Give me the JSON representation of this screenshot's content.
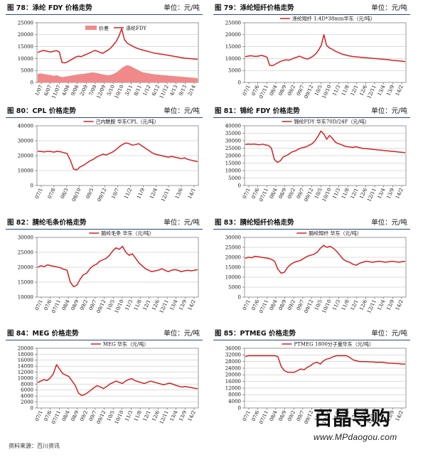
{
  "colors": {
    "line": "#d42020",
    "area": "#f08a8a",
    "rule": "#2c4a7a"
  },
  "panels": [
    {
      "title": "图 78：涤纶 FDY 价格走势",
      "unit": "单位：元/吨"
    },
    {
      "title": "图 79：涤纶短纤价格走势",
      "unit": "单位：元/吨"
    },
    {
      "title": "图 80：CPL 价格走势",
      "unit": "单位：元/吨"
    },
    {
      "title": "图 81：锦纶 FDY 价格走势",
      "unit": "单位：元/吨"
    },
    {
      "title": "图 82：腈纶毛条价格走势",
      "unit": "单位：元/吨"
    },
    {
      "title": "图 83：腈纶短纤价格走势",
      "unit": "单位：元/吨"
    },
    {
      "title": "图 84：MEG 价格走势",
      "unit": "单位：元/吨"
    },
    {
      "title": "图 85：PTMEG 价格走势",
      "unit": "单位：元/吨"
    }
  ],
  "source": "资料来源：百川资讯",
  "watermark": {
    "logo": "百晶导购",
    "url": "www.MPdaogou.com"
  },
  "chart_data": [
    {
      "type": "area",
      "ylim": [
        0,
        25000
      ],
      "yticks": [
        "0",
        "5000",
        "10000",
        "15000",
        "20000",
        "25000"
      ],
      "xticks": [
        "1/07",
        "6/07",
        "11/07",
        "4/08",
        "9/08",
        "2/09",
        "7/09",
        "12/09",
        "5/10",
        "10/10",
        "3/11",
        "8/11",
        "1/12",
        "6/12",
        "11/12",
        "4/13",
        "9/13",
        "2/14"
      ],
      "series": [
        {
          "name": "价差",
          "kind": "area",
          "values": [
            3500,
            3800,
            3600,
            3400,
            3200,
            3000,
            2800,
            3000,
            2600,
            2200,
            2400,
            2600,
            2800,
            3000,
            3200,
            3400,
            3500,
            3600,
            3800,
            4000,
            4200,
            4100,
            3900,
            3600,
            3400,
            3200,
            3000,
            3200,
            3600,
            4200,
            5000,
            6000,
            6800,
            7200,
            7000,
            6400,
            5800,
            5200,
            4600,
            4200,
            4000,
            3800,
            3600,
            3400,
            3300,
            3200,
            3100,
            3000,
            2900,
            2800,
            2700,
            2600,
            2500,
            2400,
            2300,
            2200,
            2100,
            2000,
            1900,
            1800
          ]
        },
        {
          "name": "涤纶FDY",
          "kind": "line",
          "values": [
            12500,
            13000,
            13400,
            13200,
            12900,
            12800,
            13100,
            13300,
            12700,
            8300,
            8200,
            8600,
            9300,
            9900,
            10600,
            11000,
            10800,
            11300,
            11800,
            12300,
            12800,
            13400,
            13100,
            12600,
            12200,
            12900,
            13600,
            14500,
            15800,
            17200,
            19500,
            22500,
            18000,
            16500,
            15800,
            15200,
            14600,
            14200,
            13800,
            13500,
            13200,
            12900,
            12600,
            12300,
            12100,
            11900,
            11800,
            11600,
            11400,
            11200,
            11000,
            10800,
            10600,
            10400,
            10200,
            10100,
            10000,
            9900,
            9800,
            9700
          ]
        }
      ]
    },
    {
      "type": "line",
      "ylim": [
        0,
        25000
      ],
      "yticks": [
        "0",
        "5000",
        "10000",
        "15000",
        "20000",
        "25000"
      ],
      "xticks": [
        "07/1",
        "07/6",
        "07/11",
        "08/4",
        "08/9",
        "09/2",
        "09/7",
        "09/12",
        "10/5",
        "10/10",
        "11/3",
        "11/8",
        "12/1",
        "12/6",
        "12/11",
        "13/4",
        "13/9",
        "14/2"
      ],
      "series": [
        {
          "name": "涤纶短纤 1.4D*38mm华东（元/吨）",
          "values": [
            10800,
            11000,
            11200,
            11000,
            10900,
            11100,
            11300,
            11000,
            10600,
            7200,
            7000,
            7600,
            8200,
            8800,
            9200,
            9500,
            9300,
            9700,
            10200,
            10600,
            11000,
            10500,
            10100,
            9800,
            10300,
            11000,
            12000,
            13500,
            15500,
            20000,
            15500,
            14500,
            14000,
            13200,
            12700,
            12200,
            11800,
            11500,
            11200,
            11000,
            10800,
            10700,
            10600,
            10500,
            10400,
            10300,
            10200,
            10100,
            10000,
            9900,
            9800,
            9700,
            9600,
            9500,
            9300,
            9200,
            9100,
            9000,
            8900,
            8700
          ]
        }
      ]
    },
    {
      "type": "line",
      "ylim": [
        0,
        40000
      ],
      "yticks": [
        "0",
        "10000",
        "20000",
        "30000",
        "40000"
      ],
      "xticks": [
        "07/1",
        "07/8",
        "08/3",
        "08/10",
        "09/5",
        "09/12",
        "10/7",
        "11/2",
        "11/9",
        "12/4",
        "12/11",
        "13/6",
        "14/1"
      ],
      "series": [
        {
          "name": "己内酰胺 华东CPL（元/吨）",
          "values": [
            23000,
            22800,
            22500,
            23000,
            22700,
            22400,
            22900,
            22600,
            22000,
            21500,
            17000,
            11000,
            10500,
            12500,
            13500,
            15000,
            16500,
            17500,
            19000,
            20000,
            21000,
            20500,
            21500,
            22500,
            24000,
            26000,
            27500,
            28500,
            28000,
            27000,
            27500,
            28000,
            26500,
            25000,
            23500,
            22000,
            21000,
            20500,
            20000,
            19500,
            19000,
            19500,
            19000,
            18500,
            18000,
            18500,
            17500,
            17000,
            16500,
            16000
          ]
        }
      ]
    },
    {
      "type": "line",
      "ylim": [
        0,
        40000
      ],
      "yticks": [
        "0",
        "5000",
        "10000",
        "15000",
        "20000",
        "25000",
        "30000",
        "35000",
        "40000"
      ],
      "xticks": [
        "07/1",
        "07/6",
        "07/11",
        "08/4",
        "08/9",
        "09/2",
        "09/7",
        "09/12",
        "10/5",
        "10/10",
        "11/3",
        "11/8",
        "12/1",
        "12/6",
        "12/11",
        "13/4",
        "13/9",
        "14/2"
      ],
      "series": [
        {
          "name": "锦纶FDY 华东70D/24F（元/吨）",
          "values": [
            27500,
            27800,
            27600,
            27800,
            27500,
            27300,
            27700,
            27200,
            26800,
            25000,
            17500,
            15500,
            16500,
            19000,
            20000,
            21000,
            22500,
            23000,
            24000,
            25000,
            25500,
            26000,
            27000,
            28000,
            30000,
            33000,
            36500,
            34500,
            31000,
            33500,
            31500,
            29000,
            28000,
            27500,
            26500,
            26000,
            25800,
            25500,
            26000,
            25500,
            25000,
            24800,
            24600,
            24400,
            24200,
            24000,
            23800,
            23600,
            23400,
            23200,
            23000,
            22800,
            22600,
            22400,
            22200,
            22000
          ]
        }
      ]
    },
    {
      "type": "line",
      "ylim": [
        10000,
        30000
      ],
      "yticks": [
        "10000",
        "15000",
        "20000",
        "25000",
        "30000"
      ],
      "xticks": [
        "07/1",
        "07/6",
        "07/11",
        "08/4",
        "08/9",
        "09/2",
        "09/7",
        "09/12",
        "10/5",
        "10/10",
        "11/3",
        "11/8",
        "12/1",
        "12/6",
        "12/11",
        "13/4",
        "13/9",
        "14/2"
      ],
      "series": [
        {
          "name": "腈纶毛条 华东（元/吨）",
          "values": [
            20000,
            20500,
            20200,
            20800,
            20500,
            20300,
            20100,
            19800,
            19300,
            19000,
            15000,
            13500,
            14000,
            16000,
            17500,
            18000,
            19500,
            20500,
            21000,
            22000,
            22500,
            23000,
            24000,
            25500,
            26500,
            26000,
            27000,
            25000,
            24000,
            24500,
            23000,
            21500,
            20500,
            19500,
            19000,
            18500,
            18800,
            19000,
            19500,
            19000,
            18500,
            19000,
            19200,
            19000,
            18500,
            18800,
            19000,
            18800,
            19000,
            19200
          ]
        }
      ]
    },
    {
      "type": "line",
      "ylim": [
        0,
        30000
      ],
      "yticks": [
        "0",
        "5000",
        "10000",
        "15000",
        "20000",
        "25000",
        "30000"
      ],
      "xticks": [
        "07/1",
        "07/6",
        "07/11",
        "08/4",
        "08/9",
        "09/2",
        "09/7",
        "09/12",
        "10/5",
        "10/10",
        "11/3",
        "11/8",
        "12/1",
        "12/6",
        "12/11",
        "13/4",
        "13/9",
        "14/2"
      ],
      "series": [
        {
          "name": "腈纶短纤 华东（元/吨）",
          "values": [
            19500,
            20000,
            19800,
            20500,
            20300,
            20000,
            19700,
            19500,
            19000,
            18000,
            14000,
            12000,
            12500,
            15000,
            16500,
            17500,
            18000,
            18500,
            19500,
            20500,
            21000,
            21500,
            22500,
            24500,
            26000,
            25000,
            25500,
            24500,
            23000,
            21000,
            19000,
            18000,
            17500,
            16500,
            16000,
            17000,
            17500,
            18000,
            17800,
            17500,
            17800,
            18000,
            17800,
            17500,
            17800,
            18000,
            17800,
            17500,
            17800,
            18000
          ]
        }
      ]
    },
    {
      "type": "line",
      "ylim": [
        0,
        20000
      ],
      "yticks": [
        "0",
        "2000",
        "4000",
        "6000",
        "8000",
        "10000",
        "12000",
        "14000",
        "16000",
        "18000",
        "20000"
      ],
      "xticks": [
        "07/1",
        "07/6",
        "07/11",
        "08/4",
        "08/9",
        "09/2",
        "09/7",
        "09/12",
        "10/5",
        "10/10",
        "11/3",
        "11/8",
        "12/1",
        "12/6",
        "12/11",
        "13/4",
        "13/9",
        "14/2"
      ],
      "series": [
        {
          "name": "MEG 华东（元/吨）",
          "values": [
            8500,
            9000,
            9500,
            9200,
            10000,
            11500,
            14500,
            13000,
            11500,
            11000,
            10500,
            9000,
            7500,
            5000,
            4200,
            4500,
            5200,
            6000,
            6800,
            7500,
            7000,
            6500,
            7200,
            8000,
            8500,
            9000,
            8600,
            8200,
            9000,
            9500,
            9800,
            9200,
            8800,
            8500,
            8200,
            8600,
            9000,
            8700,
            8400,
            8100,
            7800,
            8000,
            8300,
            8000,
            7600,
            7300,
            7000,
            7200,
            7000,
            6800,
            6600,
            6500
          ]
        }
      ]
    },
    {
      "type": "line",
      "ylim": [
        0,
        36000
      ],
      "yticks": [
        "0",
        "4000",
        "8000",
        "12000",
        "16000",
        "20000",
        "24000",
        "28000",
        "32000",
        "36000"
      ],
      "xticks": [
        "07/1",
        "07/6",
        "07/11",
        "08/4",
        "08/9",
        "09/2",
        "09/7",
        "09/12",
        "10/5",
        "10/10",
        "11/3",
        "11/8",
        "12/1",
        "12/6",
        "12/11",
        "13/4",
        "13/9",
        "14/2"
      ],
      "series": [
        {
          "name": "PTMEG 1800分子量华东（元/吨）",
          "values": [
            31000,
            31500,
            31500,
            31500,
            31500,
            31500,
            31500,
            31500,
            31500,
            31500,
            31000,
            25000,
            22500,
            21500,
            21500,
            21500,
            22500,
            23500,
            23000,
            24500,
            25500,
            27000,
            27500,
            26500,
            28500,
            29500,
            30000,
            31000,
            31500,
            31500,
            31500,
            31500,
            30500,
            29000,
            28500,
            28000,
            28000,
            28000,
            27800,
            27800,
            27500,
            27500,
            27500,
            27200,
            27000,
            27000,
            26800,
            26800,
            26500,
            26500
          ]
        }
      ]
    }
  ]
}
